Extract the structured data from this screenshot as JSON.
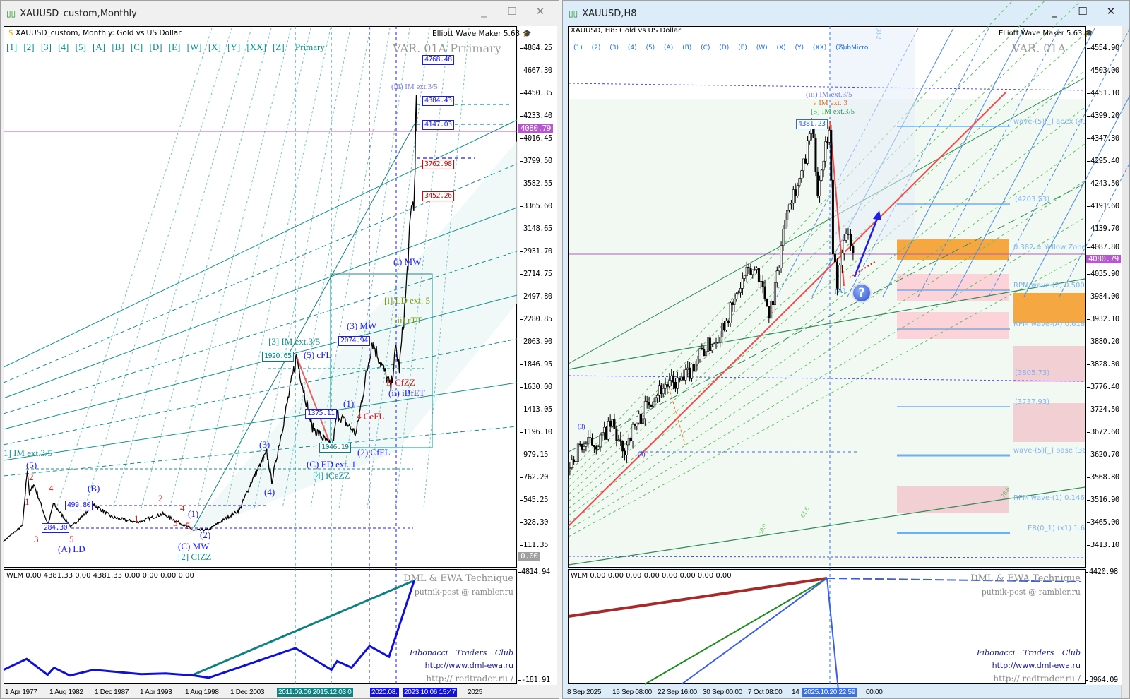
{
  "left_window": {
    "title": "XAUUSD_custom,Monthly",
    "header": "XAUUSD_custom, Monthly:  Gold vs US Dollar",
    "plugin": "Elliott Wave Maker 5.63",
    "wave_buttons": "[1]  [2]  [3]  [4]  [5]  [A]  [B]  [C]  [D]  [E]  [W]  [X]  [Y]  [XX]  [Z]",
    "degree": "Primary",
    "variant": "VAR. 01A Prrimary",
    "price_ticks": [
      "4884.25",
      "4667.30",
      "4450.35",
      "4233.40",
      "4016.45",
      "3799.50",
      "3582.55",
      "3365.60",
      "3148.65",
      "2931.70",
      "2714.75",
      "2497.80",
      "2280.85",
      "2063.90",
      "1846.95",
      "1630.00",
      "1413.05",
      "1196.10",
      "979.15",
      "762.20",
      "545.25",
      "328.30",
      "111.35"
    ],
    "current_price": "4080.79",
    "zero_label": "0.00",
    "price_boxes": {
      "b4768": "4768.48",
      "b4384": "4384.43",
      "b4147": "4147.03",
      "b3762": "3762.98",
      "b3452": "3452.26",
      "b2074": "2074.94",
      "b1920": "1920.65",
      "b1375": "1375.11",
      "b1046": "1046.19",
      "b499": "499.80",
      "b284": "284.30"
    },
    "wave_labels": {
      "im1": "1] IM ext.3/5",
      "w5a": "(5)",
      "r2a": "2",
      "r1a": "1",
      "r3a": "3",
      "r4a": "4",
      "r5a": "5",
      "wB": "(B)",
      "wALD": "(A) LD",
      "r1b": "1",
      "r2b": "2",
      "r3b": "3",
      "r4b": "4",
      "r5b": "5",
      "wCMW": "(C) MW",
      "cfzz2": "[2] CfZZ",
      "w1a": "(1)",
      "w2a": "(2)",
      "w3a": "(3)",
      "w4a": "(4)",
      "im3": "[3] IM ext.3/5",
      "w5cfl": "(5) cFL",
      "wCED": "(C) ED ext. 1",
      "iceZZ": "[4] iCeZZ",
      "w2cffl": "(2) CfFL",
      "w1b": "(1)",
      "w3mw": "(3) MW",
      "cefl": "4 CeFL",
      "cfzz": "B CfZZ",
      "ibfet": "(ii) iBfET",
      "ild": "[i] LD ext. 5",
      "irtt": "[ii] rTT",
      "imw": "(i) MW",
      "iiim": "(iii) IM ext.3/5"
    },
    "indicator_header": "WLM 0.00 4381.33 0.00 4381.33 0.00 0.00 0.00 0.00",
    "indicator_ticks": [
      "4814.94",
      "-181.91"
    ],
    "dates": [
      "1 Apr 1977",
      "1 Aug 1982",
      "1 Dec 1987",
      "1 Apr 1993",
      "1 Aug 1998",
      "1 Dec 2003",
      "2025"
    ],
    "date_highlights": [
      "2011.09.06  2015.12.03 0",
      "2020.08.",
      "2023.10.06 15:47"
    ]
  },
  "right_window": {
    "title": "XAUUSD,H8",
    "header": "XAUUSD, H8:  Gold vs US Dollar",
    "plugin": "Elliott Wave Maker 5.63",
    "wave_buttons": "(1) (2) (3) (4) (5) (A) (B) (C) (D) (E) (W) (X) (Y) (XX) (Z)",
    "degree": "SubMicro",
    "variant": "VAR. 01A",
    "price_ticks": [
      "4554.90",
      "4503.00",
      "4451.10",
      "4399.20",
      "4347.30",
      "4295.40",
      "4243.50",
      "4191.60",
      "4139.70",
      "4087.80",
      "4035.90",
      "3984.00",
      "3932.10",
      "3880.20",
      "3828.30",
      "3776.40",
      "3724.50",
      "3672.60",
      "3620.70",
      "3568.80",
      "3516.90",
      "3465.00",
      "3413.10"
    ],
    "current_price": "4080.79",
    "price_box": "4381.23",
    "wave_labels": {
      "iii": "(iii) IM ext.3/5",
      "v": "v IM ext. 3",
      "five": "[5] IM ext.3/5",
      "A": "(A)",
      "w3": "(3)",
      "w4": "(4)",
      "fib382": "38.2",
      "fib618": "61.6",
      "fib500": "50.0",
      "fib786": "78.6"
    },
    "zone_labels": [
      "wave-(5)[_] apex (438",
      "(4203.53)",
      "0.382 = Yellow Zone (4",
      "RPM wave-(2) 0.500 (4",
      "RPM wave-(A) 0.618 (3",
      "(3805.73)",
      "(3737.93)",
      "wave-(5)[_] base (362",
      "RPM wave-(1) 0.146 (3",
      "ER(0_1) (x1) 1.618"
    ],
    "indicator_header": "WLM 0.00 0.00 0.00 0.00 0.00 0.00 0.00 0.00",
    "indicator_ticks": [
      "4420.98",
      "3964.09"
    ],
    "dates": [
      "8 Sep 2025",
      "15 Sep 08:00",
      "22 Sep 16:00",
      "30 Sep 00:00",
      "7 Oct 08:00",
      "14",
      "00:00"
    ],
    "date_highlight": "2025.10.20 22:59",
    "help_icon": "?"
  },
  "credits": {
    "technique": "DML & EWA Technique",
    "email": "putnik-post @ rambler.ru",
    "club": "Fibonacci   Traders   Club",
    "url1": "http://www.dml-ewa.ru",
    "url2": "http:// redtrader.ru /"
  },
  "colors": {
    "current_price": "#b955d0",
    "wave_blue": "#1a1aff",
    "wave_red": "#d02020",
    "teal": "#008080",
    "zone_orange": "#f5a742",
    "zone_pink": "#f7c9cf"
  },
  "chart_data": [
    {
      "type": "line",
      "title": "XAUUSD_custom, Monthly",
      "x_unit": "year",
      "ylim": [
        0,
        4884.25
      ],
      "points": [
        [
          1977.25,
          148
        ],
        [
          1979.5,
          300
        ],
        [
          1980.05,
          850
        ],
        [
          1980.3,
          600
        ],
        [
          1980.8,
          700
        ],
        [
          1982.5,
          300
        ],
        [
          1983.1,
          510
        ],
        [
          1985.2,
          284
        ],
        [
          1987.9,
          499
        ],
        [
          1990,
          380
        ],
        [
          1993,
          330
        ],
        [
          1996,
          410
        ],
        [
          1999.6,
          253
        ],
        [
          2001.3,
          258
        ],
        [
          2005,
          450
        ],
        [
          2006.4,
          720
        ],
        [
          2008.2,
          1000
        ],
        [
          2008.8,
          720
        ],
        [
          2011.7,
          1920
        ],
        [
          2013.5,
          1250
        ],
        [
          2015.9,
          1046
        ],
        [
          2016.5,
          1375
        ],
        [
          2018.7,
          1180
        ],
        [
          2020.6,
          2074
        ],
        [
          2022.8,
          1620
        ],
        [
          2023.4,
          2000
        ],
        [
          2023.8,
          1810
        ],
        [
          2024.5,
          2450
        ],
        [
          2025.3,
          3450
        ],
        [
          2025.5,
          3300
        ],
        [
          2025.8,
          4381
        ],
        [
          2025.85,
          4080
        ]
      ]
    },
    {
      "type": "candlestick",
      "title": "XAUUSD, H8",
      "x_unit": "days since 8 Sep 2025",
      "ylim": [
        3413.1,
        4554.9
      ],
      "points": [
        [
          0,
          3590
        ],
        [
          2,
          3640
        ],
        [
          5,
          3650
        ],
        [
          7.3,
          3690
        ],
        [
          9,
          3620
        ],
        [
          10,
          3660
        ],
        [
          14,
          3760
        ],
        [
          16,
          3780
        ],
        [
          19,
          3790
        ],
        [
          22,
          3860
        ],
        [
          24,
          3880
        ],
        [
          27,
          3960
        ],
        [
          29,
          4030
        ],
        [
          31,
          4050
        ],
        [
          33,
          3950
        ],
        [
          34,
          4000
        ],
        [
          36,
          4200
        ],
        [
          38,
          4250
        ],
        [
          39,
          4300
        ],
        [
          40,
          4380
        ],
        [
          41,
          4230
        ],
        [
          42.9,
          4381
        ],
        [
          43.5,
          4100
        ],
        [
          44.2,
          4000
        ],
        [
          45,
          4100
        ],
        [
          46,
          4120
        ],
        [
          46.8,
          4080
        ]
      ]
    }
  ]
}
